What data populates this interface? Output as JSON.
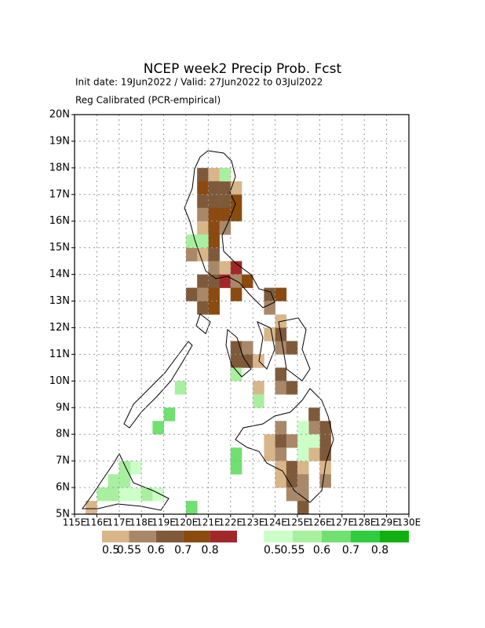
{
  "chart_data": {
    "type": "grid-map",
    "title": "NCEP week2 Precip Prob. Fcst",
    "subtitle": "Init date: 19Jun2022 / Valid: 27Jun2022 to 03Jul2022",
    "note": "Reg Calibrated (PCR-empirical)",
    "xlim": [
      115,
      130
    ],
    "ylim": [
      5,
      20
    ],
    "xticks": [
      {
        "value": 115,
        "label": "115E"
      },
      {
        "value": 116,
        "label": "116E"
      },
      {
        "value": 117,
        "label": "117E"
      },
      {
        "value": 118,
        "label": "118E"
      },
      {
        "value": 119,
        "label": "119E"
      },
      {
        "value": 120,
        "label": "120E"
      },
      {
        "value": 121,
        "label": "121E"
      },
      {
        "value": 122,
        "label": "122E"
      },
      {
        "value": 123,
        "label": "123E"
      },
      {
        "value": 124,
        "label": "124E"
      },
      {
        "value": 125,
        "label": "125E"
      },
      {
        "value": 126,
        "label": "126E"
      },
      {
        "value": 127,
        "label": "127E"
      },
      {
        "value": 128,
        "label": "128E"
      },
      {
        "value": 129,
        "label": "129E"
      },
      {
        "value": 130,
        "label": "130E"
      }
    ],
    "yticks": [
      {
        "value": 5,
        "label": "5N"
      },
      {
        "value": 6,
        "label": "6N"
      },
      {
        "value": 7,
        "label": "7N"
      },
      {
        "value": 8,
        "label": "8N"
      },
      {
        "value": 9,
        "label": "9N"
      },
      {
        "value": 10,
        "label": "10N"
      },
      {
        "value": 11,
        "label": "11N"
      },
      {
        "value": 12,
        "label": "12N"
      },
      {
        "value": 13,
        "label": "13N"
      },
      {
        "value": 14,
        "label": "14N"
      },
      {
        "value": 15,
        "label": "15N"
      },
      {
        "value": 16,
        "label": "16N"
      },
      {
        "value": 17,
        "label": "17N"
      },
      {
        "value": 18,
        "label": "18N"
      },
      {
        "value": 19,
        "label": "19N"
      },
      {
        "value": 20,
        "label": "20N"
      }
    ],
    "grid": true,
    "dry_legend": {
      "colors": [
        "#d8b68a",
        "#a88868",
        "#7f5a3a",
        "#8a4a10",
        "#a0282a"
      ],
      "labels": [
        0.5,
        0.55,
        0.6,
        0.7,
        0.8
      ]
    },
    "wet_legend": {
      "colors": [
        "#ccffc8",
        "#a8f0a0",
        "#70e070",
        "#30cc40",
        "#10b010"
      ],
      "labels": [
        0.5,
        0.55,
        0.6,
        0.7,
        0.8
      ]
    },
    "dry_cells": [
      [
        120.5,
        17.5,
        0.65
      ],
      [
        121,
        17.5,
        0.52
      ],
      [
        120.5,
        17,
        0.75
      ],
      [
        121,
        17,
        0.65
      ],
      [
        121.5,
        17,
        0.65
      ],
      [
        122,
        17,
        0.52
      ],
      [
        120.5,
        16.5,
        0.65
      ],
      [
        121,
        16.5,
        0.65
      ],
      [
        121.5,
        16.5,
        0.65
      ],
      [
        122,
        16.5,
        0.75
      ],
      [
        120.5,
        16,
        0.57
      ],
      [
        121,
        16,
        0.75
      ],
      [
        121.5,
        16,
        0.75
      ],
      [
        122,
        16,
        0.75
      ],
      [
        120.5,
        15.5,
        0.52
      ],
      [
        121,
        15.5,
        0.75
      ],
      [
        121.5,
        15.5,
        0.57
      ],
      [
        121,
        15,
        0.75
      ],
      [
        120,
        14.5,
        0.57
      ],
      [
        120.5,
        14.5,
        0.52
      ],
      [
        121,
        14.5,
        0.65
      ],
      [
        121,
        14,
        0.57
      ],
      [
        121.5,
        14,
        0.52
      ],
      [
        122,
        14,
        0.85
      ],
      [
        120.5,
        13.5,
        0.65
      ],
      [
        121,
        13.5,
        0.65
      ],
      [
        121.5,
        13.5,
        0.85
      ],
      [
        122,
        13.5,
        0.57
      ],
      [
        122.5,
        13.5,
        0.75
      ],
      [
        120,
        13,
        0.65
      ],
      [
        120.5,
        13,
        0.57
      ],
      [
        121,
        13,
        0.75
      ],
      [
        122,
        13,
        0.75
      ],
      [
        123.5,
        13,
        0.65
      ],
      [
        124,
        13,
        0.75
      ],
      [
        120.5,
        12.5,
        0.65
      ],
      [
        121,
        12.5,
        0.75
      ],
      [
        123.5,
        12.5,
        0.57
      ],
      [
        124,
        12,
        0.52
      ],
      [
        123.5,
        11.5,
        0.52
      ],
      [
        124,
        11.5,
        0.65
      ],
      [
        122,
        11,
        0.65
      ],
      [
        122.5,
        11,
        0.57
      ],
      [
        124,
        11,
        0.57
      ],
      [
        124.5,
        11,
        0.65
      ],
      [
        122,
        10.5,
        0.65
      ],
      [
        122.5,
        10.5,
        0.65
      ],
      [
        123,
        10.5,
        0.52
      ],
      [
        124,
        10,
        0.65
      ],
      [
        123,
        9.5,
        0.52
      ],
      [
        124,
        9.5,
        0.57
      ],
      [
        124.5,
        9.5,
        0.65
      ],
      [
        125.5,
        8.5,
        0.65
      ],
      [
        124,
        8,
        0.57
      ],
      [
        125.5,
        8,
        0.57
      ],
      [
        126,
        8,
        0.65
      ],
      [
        123.5,
        7.5,
        0.52
      ],
      [
        124,
        7.5,
        0.65
      ],
      [
        124.5,
        7.5,
        0.57
      ],
      [
        126,
        7.5,
        0.65
      ],
      [
        123.5,
        7,
        0.52
      ],
      [
        124,
        7,
        0.57
      ],
      [
        125.5,
        7,
        0.52
      ],
      [
        126,
        7,
        0.65
      ],
      [
        124,
        6.5,
        0.52
      ],
      [
        124.5,
        6.5,
        0.65
      ],
      [
        125,
        6.5,
        0.52
      ],
      [
        126,
        6.5,
        0.52
      ],
      [
        124,
        6,
        0.52
      ],
      [
        124.5,
        6,
        0.65
      ],
      [
        125,
        6,
        0.57
      ],
      [
        126,
        6,
        0.57
      ],
      [
        124.5,
        5.5,
        0.57
      ],
      [
        125,
        5.5,
        0.57
      ],
      [
        125,
        5,
        0.65
      ],
      [
        115.5,
        5,
        0.52
      ]
    ],
    "wet_cells": [
      [
        121.5,
        17.5,
        0.57
      ],
      [
        120,
        15,
        0.57
      ],
      [
        120.5,
        15,
        0.57
      ],
      [
        122,
        10,
        0.57
      ],
      [
        123,
        9,
        0.57
      ],
      [
        125,
        8,
        0.52
      ],
      [
        125,
        7.5,
        0.52
      ],
      [
        125.5,
        7.5,
        0.52
      ],
      [
        125,
        7,
        0.52
      ],
      [
        122,
        7,
        0.65
      ],
      [
        122,
        6.5,
        0.65
      ],
      [
        119.5,
        9.5,
        0.57
      ],
      [
        119,
        8.5,
        0.65
      ],
      [
        118.5,
        8,
        0.65
      ],
      [
        117.5,
        6.5,
        0.52
      ],
      [
        117,
        6.5,
        0.57
      ],
      [
        117,
        6,
        0.57
      ],
      [
        116.5,
        6,
        0.57
      ],
      [
        116,
        5.5,
        0.57
      ],
      [
        116.5,
        5.5,
        0.57
      ],
      [
        117,
        5.5,
        0.52
      ],
      [
        117.5,
        5.5,
        0.52
      ],
      [
        118,
        5.5,
        0.57
      ],
      [
        118.5,
        5.5,
        0.52
      ],
      [
        120,
        5,
        0.65
      ]
    ]
  }
}
